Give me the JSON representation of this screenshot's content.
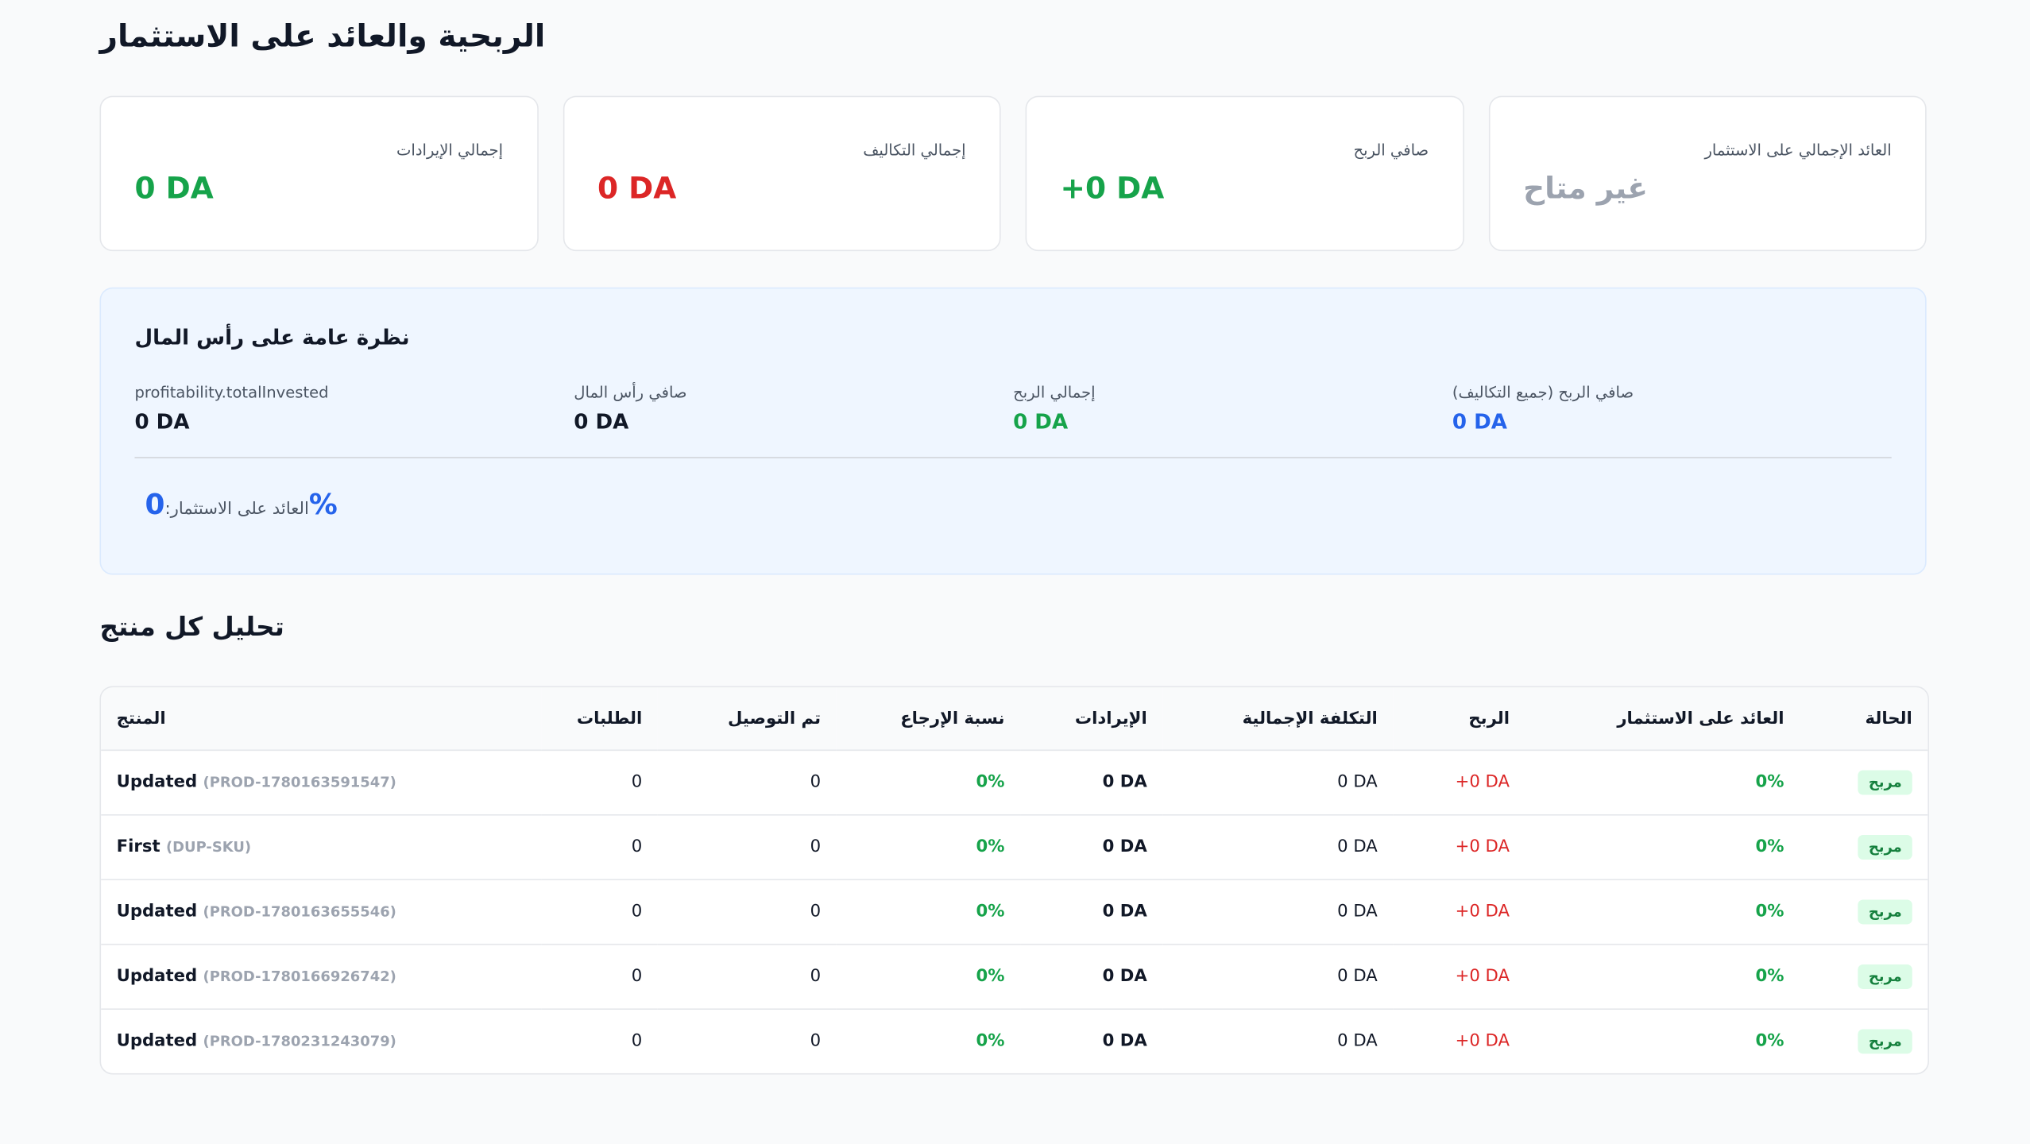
{
  "header": {
    "title": "الربحية والعائد على الاستثمار"
  },
  "cards": [
    {
      "label": "إجمالي الإيرادات",
      "value": "0 DA"
    },
    {
      "label": "إجمالي التكاليف",
      "value": "0 DA"
    },
    {
      "label": "صافي الربح",
      "value": "+0 DA"
    },
    {
      "label": "العائد الإجمالي على الاستثمار",
      "value": "غير متاح"
    }
  ],
  "overview": {
    "title": "نظرة عامة على رأس المال",
    "items": [
      {
        "label": "profitability.totalInvested",
        "value": "0 DA"
      },
      {
        "label": "صافي رأس المال",
        "value": "0 DA"
      },
      {
        "label": "إجمالي الربح",
        "value": "0 DA"
      },
      {
        "label": "صافي الربح (جميع التكاليف)",
        "value": "0 DA"
      }
    ],
    "roi": {
      "value": "0",
      "label": "العائد على الاستثمار:",
      "unit": "%"
    }
  },
  "products": {
    "title": "تحليل كل منتج",
    "columns": [
      "المنتج",
      "الطلبات",
      "تم التوصيل",
      "نسبة الإرجاع",
      "الإيرادات",
      "التكلفة الإجمالية",
      "الربح",
      "العائد على الاستثمار",
      "الحالة"
    ],
    "rows": [
      [
        "Updated",
        "(PROD-1780163591547)",
        "0",
        "0",
        "0%",
        "0 DA",
        "0 DA",
        "+0 DA",
        "0%",
        "مربح"
      ],
      [
        "First",
        "(DUP-SKU)",
        "0",
        "0",
        "0%",
        "0 DA",
        "0 DA",
        "+0 DA",
        "0%",
        "مربح"
      ],
      [
        "Updated",
        "(PROD-1780163655546)",
        "0",
        "0",
        "0%",
        "0 DA",
        "0 DA",
        "+0 DA",
        "0%",
        "مربح"
      ],
      [
        "Updated",
        "(PROD-1780166926742)",
        "0",
        "0",
        "0%",
        "0 DA",
        "0 DA",
        "+0 DA",
        "0%",
        "مربح"
      ],
      [
        "Updated",
        "(PROD-1780231243079)",
        "0",
        "0",
        "0%",
        "0 DA",
        "0 DA",
        "+0 DA",
        "0%",
        "مربح"
      ]
    ]
  }
}
